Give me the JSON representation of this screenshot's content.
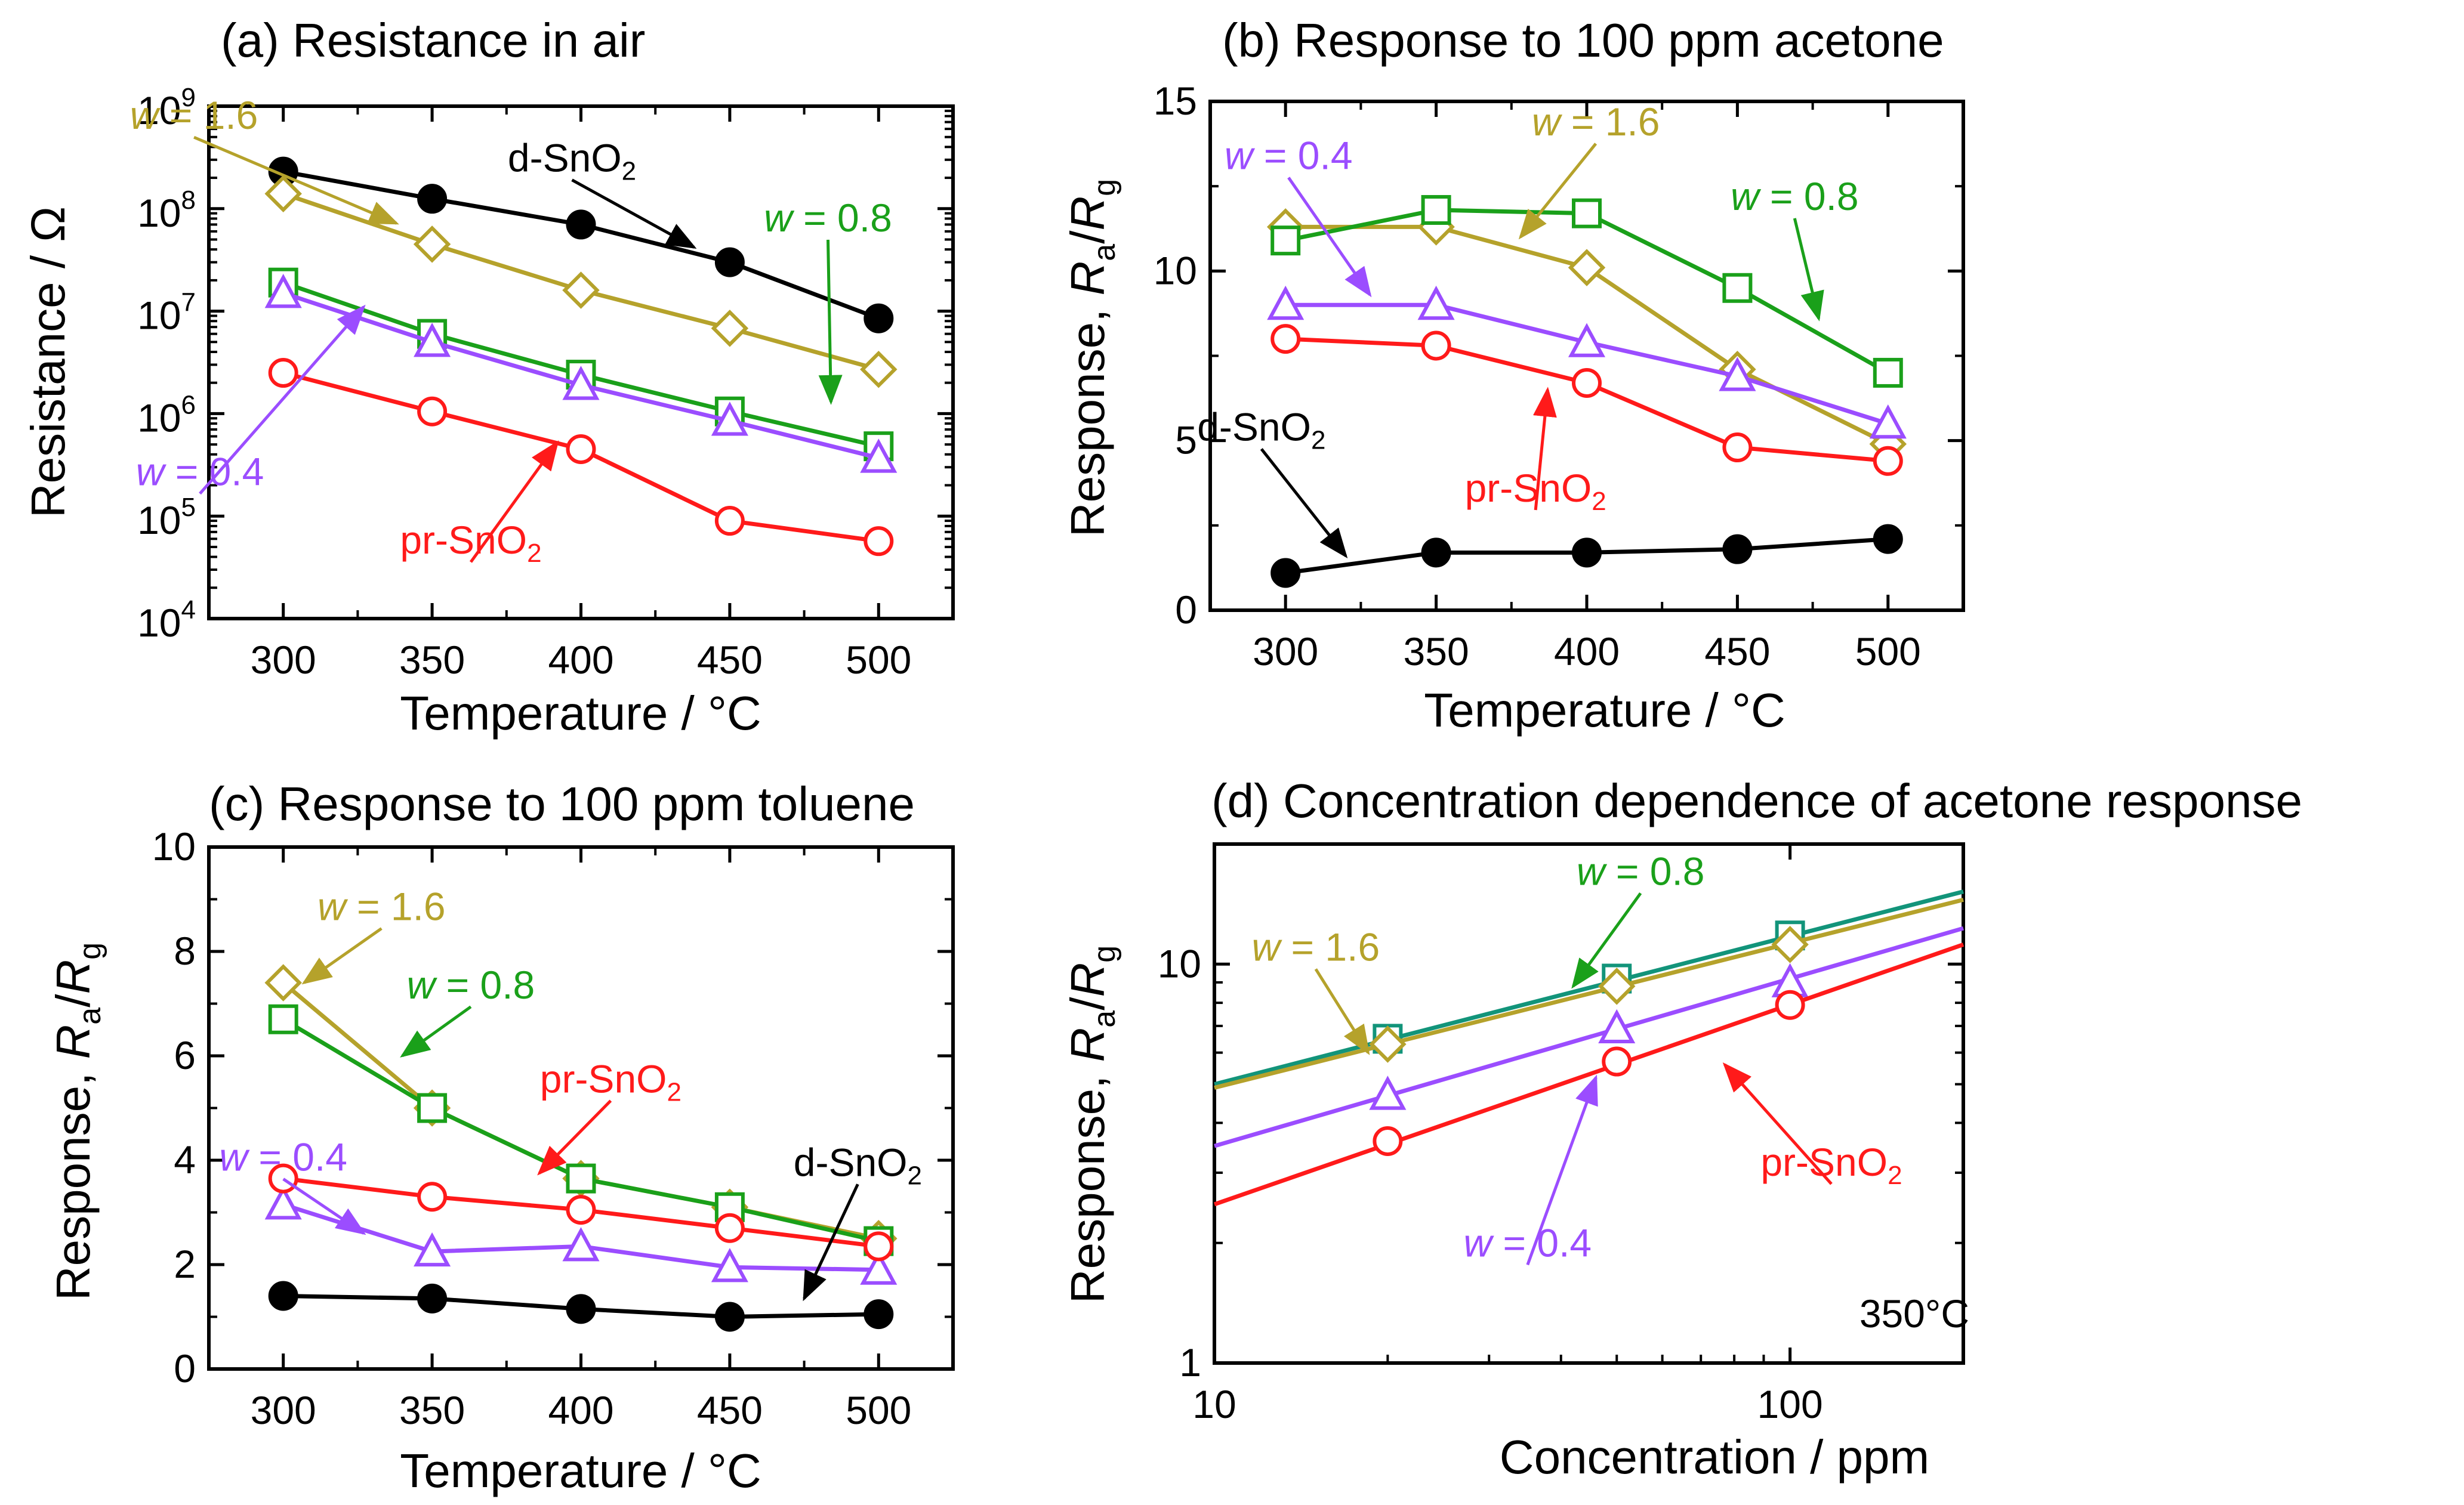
{
  "colors": {
    "d-SnO2": "#000000",
    "w = 1.6": "#b5a22b",
    "w = 0.8": "#1aa01a",
    "w = 0.4": "#9b4dff",
    "pr-SnO2": "#ff1a1a",
    "w = 0.8 (d)": "#12947a"
  },
  "chart_data": [
    {
      "id": "a",
      "type": "line",
      "title": "(a) Resistance in air",
      "xlabel": "Temperature / °C",
      "ylabel": "Resistance / Ω",
      "xscale": "linear",
      "yscale": "log",
      "xlim": [
        275,
        525
      ],
      "ylim": [
        10000,
        1000000000
      ],
      "x": [
        300,
        350,
        400,
        450,
        500
      ],
      "xticks": [
        300,
        350,
        400,
        450,
        500
      ],
      "xtick_labels": [
        "300",
        "350",
        "400",
        "450",
        "500"
      ],
      "yticks": [
        10000,
        100000,
        1000000,
        10000000,
        100000000,
        1000000000
      ],
      "ytick_labels": [
        [
          "10",
          "4"
        ],
        [
          "10",
          "5"
        ],
        [
          "10",
          "6"
        ],
        [
          "10",
          "7"
        ],
        [
          "10",
          "8"
        ],
        [
          "10",
          "9"
        ]
      ],
      "series": [
        {
          "name": "d-SnO2",
          "marker": "filled-circle",
          "values": [
            230000000,
            125000000,
            70000000,
            30000000,
            8500000
          ]
        },
        {
          "name": "w = 1.6",
          "marker": "diamond",
          "values": [
            140000000,
            45000000,
            16000000,
            6800000,
            2700000
          ]
        },
        {
          "name": "w = 0.8",
          "marker": "square",
          "values": [
            19000000,
            6000000,
            2400000,
            1050000,
            480000
          ]
        },
        {
          "name": "w = 0.4",
          "marker": "triangle",
          "values": [
            15000000,
            5000000,
            1900000,
            850000,
            370000
          ]
        },
        {
          "name": "pr-SnO2",
          "marker": "circle",
          "values": [
            2500000,
            1050000,
            450000,
            90000,
            57000
          ]
        }
      ],
      "annotations": [
        {
          "series": "w = 1.6",
          "text": [
            "w",
            " = 1.6"
          ],
          "at": [
            270,
            600000000
          ],
          "arrow_to": [
            338,
            72000000
          ]
        },
        {
          "series": "d-SnO2",
          "text": [
            "d-SnO",
            "2"
          ],
          "at": [
            397,
            230000000
          ],
          "arrow_to": [
            438,
            42000000
          ]
        },
        {
          "series": "w = 0.8",
          "text": [
            "w",
            " = 0.8"
          ],
          "at": [
            483,
            60000000
          ],
          "arrow_to": [
            484,
            1300000
          ]
        },
        {
          "series": "w = 0.4",
          "text": [
            "w",
            " = 0.4"
          ],
          "at": [
            272,
            200000
          ],
          "arrow_to": [
            327,
            11000000
          ]
        },
        {
          "series": "pr-SnO2",
          "text": [
            "pr-SnO",
            "2"
          ],
          "at": [
            363,
            43000
          ],
          "arrow_to": [
            392,
            520000
          ]
        }
      ]
    },
    {
      "id": "b",
      "type": "line",
      "title": "(b) Response to 100 ppm acetone",
      "xlabel": "Temperature / °C",
      "ylabel": [
        "Response, ",
        "R",
        "a",
        "/",
        "R",
        "g"
      ],
      "xscale": "linear",
      "yscale": "linear",
      "xlim": [
        275,
        525
      ],
      "ylim": [
        0,
        15
      ],
      "x": [
        300,
        350,
        400,
        450,
        500
      ],
      "xticks": [
        300,
        350,
        400,
        450,
        500
      ],
      "xtick_labels": [
        "300",
        "350",
        "400",
        "450",
        "500"
      ],
      "yticks": [
        0,
        5,
        10,
        15
      ],
      "ytick_labels": [
        "0",
        "5",
        "10",
        "15"
      ],
      "series": [
        {
          "name": "d-SnO2",
          "marker": "filled-circle",
          "values": [
            1.1,
            1.7,
            1.7,
            1.8,
            2.1
          ]
        },
        {
          "name": "w = 1.6",
          "marker": "diamond",
          "values": [
            11.3,
            11.3,
            10.1,
            7.1,
            4.9
          ]
        },
        {
          "name": "w = 0.8",
          "marker": "square",
          "values": [
            10.9,
            11.8,
            11.7,
            9.5,
            7.0
          ]
        },
        {
          "name": "w = 0.4",
          "marker": "triangle",
          "values": [
            9.0,
            9.0,
            7.9,
            6.9,
            5.5
          ]
        },
        {
          "name": "pr-SnO2",
          "marker": "circle",
          "values": [
            8.0,
            7.8,
            6.7,
            4.8,
            4.4
          ]
        }
      ],
      "annotations": [
        {
          "series": "w = 1.6",
          "text": [
            "w",
            " = 1.6"
          ],
          "at": [
            403,
            14.0
          ],
          "arrow_to": [
            378,
            11.0
          ]
        },
        {
          "series": "w = 0.4",
          "text": [
            "w",
            " = 0.4"
          ],
          "at": [
            301,
            13.0
          ],
          "arrow_to": [
            328,
            9.3
          ]
        },
        {
          "series": "w = 0.8",
          "text": [
            "w",
            " = 0.8"
          ],
          "at": [
            469,
            11.8
          ],
          "arrow_to": [
            477,
            8.6
          ]
        },
        {
          "series": "d-SnO2",
          "text": [
            "d-SnO",
            "2"
          ],
          "at": [
            292,
            5.0
          ],
          "arrow_to": [
            320,
            1.6
          ]
        },
        {
          "series": "pr-SnO2",
          "text": [
            "pr-SnO",
            "2"
          ],
          "at": [
            383,
            3.2
          ],
          "arrow_to": [
            387,
            6.5
          ]
        }
      ]
    },
    {
      "id": "c",
      "type": "line",
      "title": "(c) Response to 100 ppm toluene",
      "xlabel": "Temperature / °C",
      "ylabel": [
        "Response, ",
        "R",
        "a",
        "/",
        "R",
        "g"
      ],
      "xscale": "linear",
      "yscale": "linear",
      "xlim": [
        275,
        525
      ],
      "ylim": [
        0,
        10
      ],
      "x": [
        300,
        350,
        400,
        450,
        500
      ],
      "xticks": [
        300,
        350,
        400,
        450,
        500
      ],
      "xtick_labels": [
        "300",
        "350",
        "400",
        "450",
        "500"
      ],
      "yticks": [
        0,
        2,
        4,
        6,
        8,
        10
      ],
      "ytick_labels": [
        "0",
        "2",
        "4",
        "6",
        "8",
        "10"
      ],
      "series": [
        {
          "name": "d-SnO2",
          "marker": "filled-circle",
          "values": [
            1.4,
            1.35,
            1.15,
            1.0,
            1.05
          ]
        },
        {
          "name": "w = 1.6",
          "marker": "diamond",
          "values": [
            7.4,
            5.0,
            3.65,
            3.1,
            2.5
          ]
        },
        {
          "name": "w = 0.8",
          "marker": "square",
          "values": [
            6.7,
            5.0,
            3.65,
            3.1,
            2.45
          ]
        },
        {
          "name": "w = 0.4",
          "marker": "triangle",
          "values": [
            3.15,
            2.25,
            2.35,
            1.95,
            1.9
          ]
        },
        {
          "name": "pr-SnO2",
          "marker": "circle",
          "values": [
            3.65,
            3.3,
            3.05,
            2.7,
            2.35
          ]
        }
      ],
      "annotations": [
        {
          "series": "w = 1.6",
          "text": [
            "w",
            " = 1.6"
          ],
          "at": [
            333,
            8.6
          ],
          "arrow_to": [
            307,
            7.4
          ]
        },
        {
          "series": "w = 0.8",
          "text": [
            "w",
            " = 0.8"
          ],
          "at": [
            363,
            7.1
          ],
          "arrow_to": [
            340,
            6.0
          ]
        },
        {
          "series": "pr-SnO2",
          "text": [
            "pr-SnO",
            "2"
          ],
          "at": [
            410,
            5.3
          ],
          "arrow_to": [
            386,
            3.75
          ]
        },
        {
          "series": "w = 0.4",
          "text": [
            "w",
            " = 0.4"
          ],
          "at": [
            300,
            3.8
          ],
          "arrow_to": [
            327,
            2.6
          ]
        },
        {
          "series": "d-SnO2",
          "text": [
            "d-SnO",
            "2"
          ],
          "at": [
            493,
            3.7
          ],
          "arrow_to": [
            475,
            1.35
          ]
        }
      ]
    },
    {
      "id": "d",
      "type": "line",
      "title": "(d) Concentration dependence of acetone response",
      "xlabel": "Concentration / ppm",
      "ylabel": [
        "Response, ",
        "R",
        "a",
        "/",
        "R",
        "g"
      ],
      "xscale": "log",
      "yscale": "log",
      "xlim": [
        10,
        200
      ],
      "ylim": [
        1,
        20
      ],
      "x": [
        20,
        50,
        100
      ],
      "xticks": [
        10,
        100
      ],
      "xtick_labels": [
        "10",
        "100"
      ],
      "yticks": [
        1,
        10
      ],
      "ytick_labels": [
        "1",
        "10"
      ],
      "annotation_text": "350°C",
      "series": [
        {
          "name": "w = 0.8",
          "marker": "square",
          "color_key": "w = 0.8 (d)",
          "values": [
            6.5,
            9.2,
            11.8
          ],
          "fit": [
            5.0,
            15.2
          ]
        },
        {
          "name": "w = 1.6",
          "marker": "diamond",
          "values": [
            6.3,
            8.8,
            11.2
          ],
          "fit": [
            4.9,
            14.5
          ]
        },
        {
          "name": "w = 0.4",
          "marker": "triangle",
          "values": [
            4.7,
            6.9,
            9.0
          ],
          "fit": [
            3.5,
            12.3
          ]
        },
        {
          "name": "pr-SnO2",
          "marker": "circle",
          "values": [
            3.6,
            5.7,
            7.9
          ],
          "fit": [
            2.5,
            11.2
          ]
        }
      ],
      "annotations": [
        {
          "series": "w = 1.6",
          "text": [
            "w",
            " = 1.6"
          ],
          "at": [
            15,
            10.2
          ],
          "arrow_to": [
            18.5,
            6.0
          ]
        },
        {
          "series": "w = 0.8",
          "text": [
            "w",
            " = 0.8"
          ],
          "at": [
            55,
            15.8
          ],
          "arrow_to": [
            42,
            8.8
          ]
        },
        {
          "series": "w = 0.4",
          "text": [
            "w",
            " = 0.4"
          ],
          "at": [
            35,
            1.85
          ],
          "arrow_to": [
            46,
            5.2
          ]
        },
        {
          "series": "pr-SnO2",
          "text": [
            "pr-SnO",
            "2"
          ],
          "at": [
            118,
            2.95
          ],
          "arrow_to": [
            77,
            5.6
          ]
        }
      ]
    }
  ]
}
